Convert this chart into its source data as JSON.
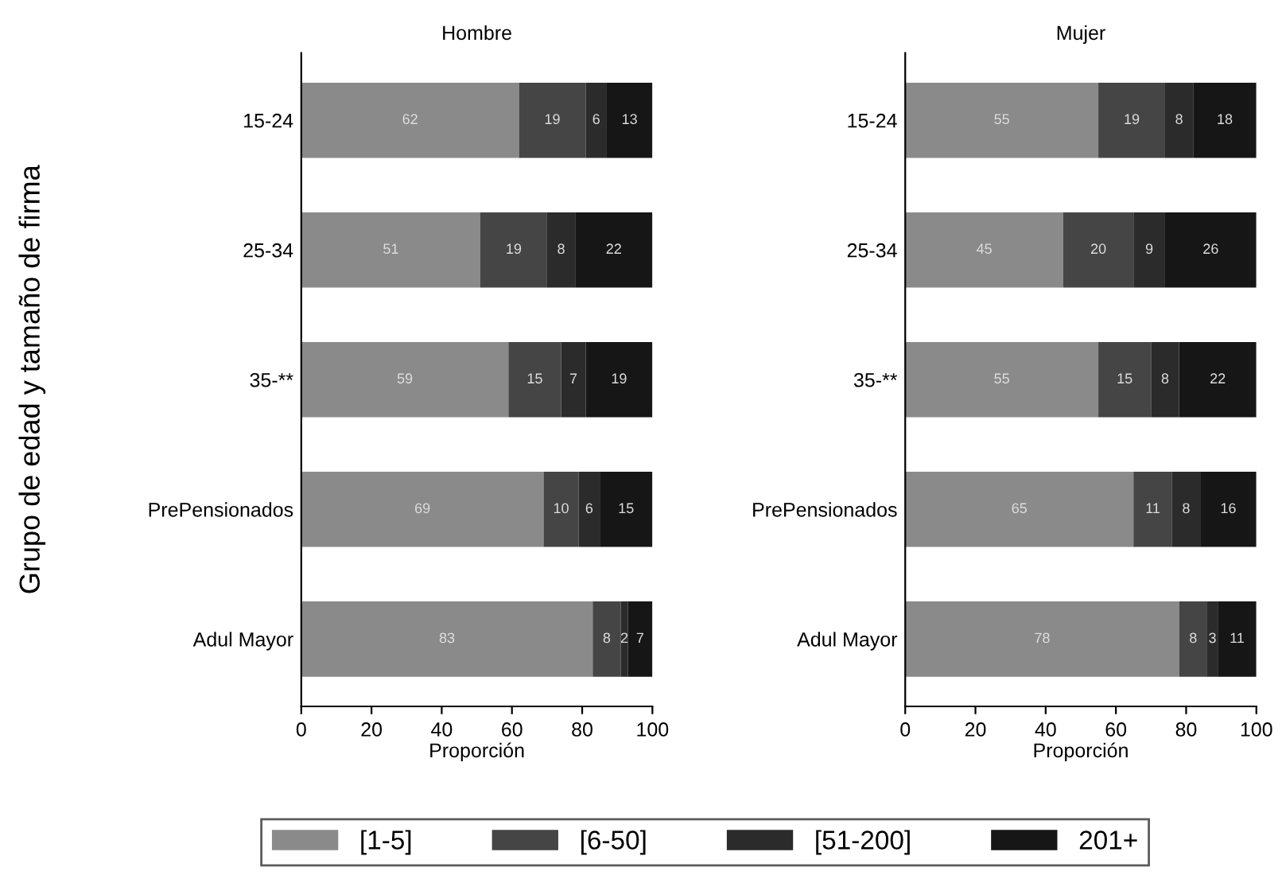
{
  "chart_data": [
    {
      "type": "bar",
      "orientation": "horizontal",
      "stacked": true,
      "title": "Hombre",
      "xlabel": "Proporción",
      "ylabel": "Grupo de edad y tamaño de firma",
      "categories": [
        "15-24",
        "25-34",
        "35-**",
        "PrePensionados",
        "Adul Mayor"
      ],
      "xlim": [
        0,
        100
      ],
      "xticks": [
        0,
        20,
        40,
        60,
        80,
        100
      ],
      "data_labels": true,
      "grid": false,
      "legend": "bottom",
      "series": [
        {
          "name": "[1-5]",
          "color": "#8a8a8a",
          "values": [
            62,
            51,
            59,
            69,
            83
          ]
        },
        {
          "name": "[6-50]",
          "color": "#454545",
          "values": [
            19,
            19,
            15,
            10,
            8
          ]
        },
        {
          "name": "[51-200]",
          "color": "#2b2b2b",
          "values": [
            6,
            8,
            7,
            6,
            2
          ]
        },
        {
          "name": "201+",
          "color": "#161616",
          "values": [
            13,
            22,
            19,
            15,
            7
          ]
        }
      ]
    },
    {
      "type": "bar",
      "orientation": "horizontal",
      "stacked": true,
      "title": "Mujer",
      "xlabel": "Proporción",
      "categories": [
        "15-24",
        "25-34",
        "35-**",
        "PrePensionados",
        "Adul Mayor"
      ],
      "xlim": [
        0,
        100
      ],
      "xticks": [
        0,
        20,
        40,
        60,
        80,
        100
      ],
      "data_labels": true,
      "grid": false,
      "series": [
        {
          "color": "#8a8a8a",
          "values": [
            55,
            45,
            55,
            65,
            78
          ]
        },
        {
          "color": "#454545",
          "values": [
            19,
            20,
            15,
            11,
            8
          ]
        },
        {
          "color": "#2b2b2b",
          "values": [
            8,
            9,
            8,
            8,
            3
          ]
        },
        {
          "color": "#161616",
          "values": [
            18,
            26,
            22,
            16,
            11
          ]
        }
      ]
    }
  ]
}
